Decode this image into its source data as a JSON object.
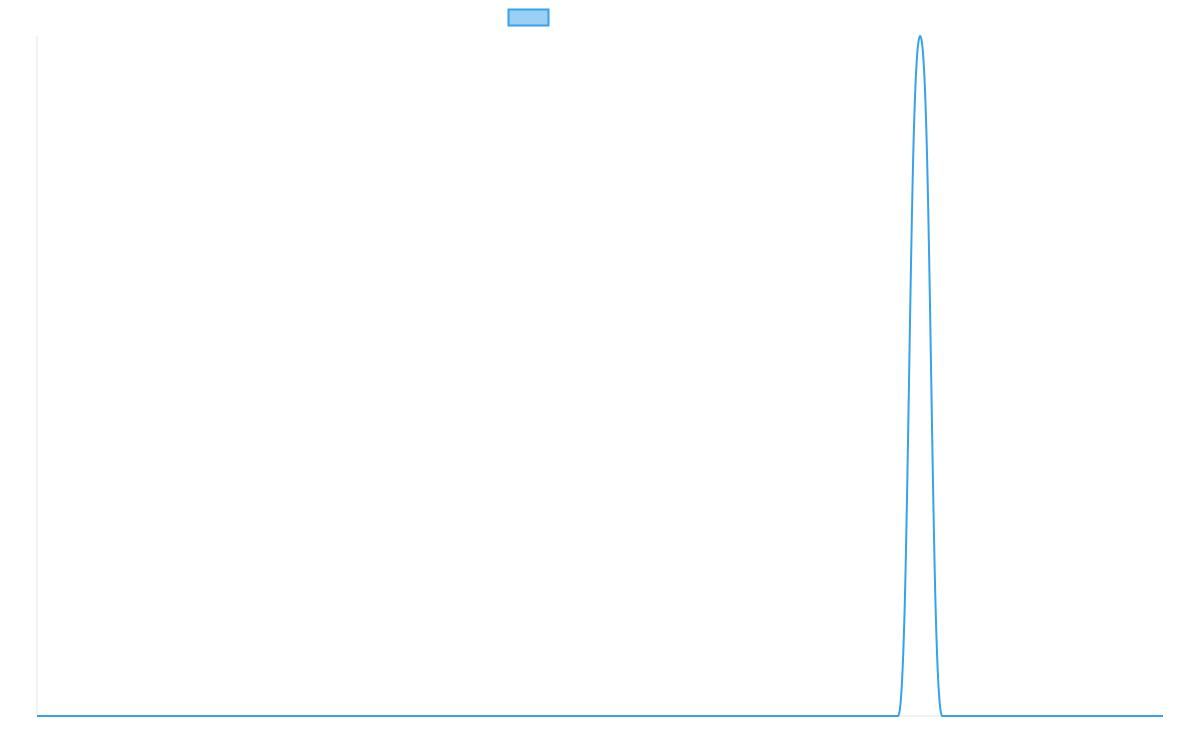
{
  "chart_data": {
    "type": "line",
    "title": "",
    "xlabel": "",
    "ylabel": "",
    "grid": false,
    "legend_position": "top",
    "series": [
      {
        "color": "#36a2eb",
        "fill": "#9ad0f5",
        "x": [
          0,
          1,
          2,
          3,
          4,
          5,
          6,
          7,
          8,
          9,
          10,
          11,
          12,
          13,
          14,
          15,
          16,
          17,
          18,
          19,
          20,
          21,
          22,
          23,
          24,
          25,
          26,
          27,
          28,
          29,
          30,
          31,
          32,
          33,
          34,
          35,
          36,
          37,
          38,
          39,
          40,
          41,
          42,
          43,
          44,
          45,
          46,
          47,
          48,
          49,
          50,
          51
        ],
        "values": [
          0,
          0,
          0,
          0,
          0,
          0,
          0,
          0,
          0,
          0,
          0,
          0,
          0,
          0,
          0,
          0,
          0,
          0,
          0,
          0,
          0,
          0,
          0,
          0,
          0,
          0,
          0,
          0,
          0,
          0,
          0,
          0,
          0,
          0,
          0,
          0,
          0,
          0,
          0,
          0,
          1,
          0,
          0,
          0,
          0,
          0,
          0,
          0,
          0,
          0,
          0,
          0
        ]
      }
    ],
    "xlim": [
      0,
      51
    ],
    "ylim": [
      0,
      1
    ]
  }
}
